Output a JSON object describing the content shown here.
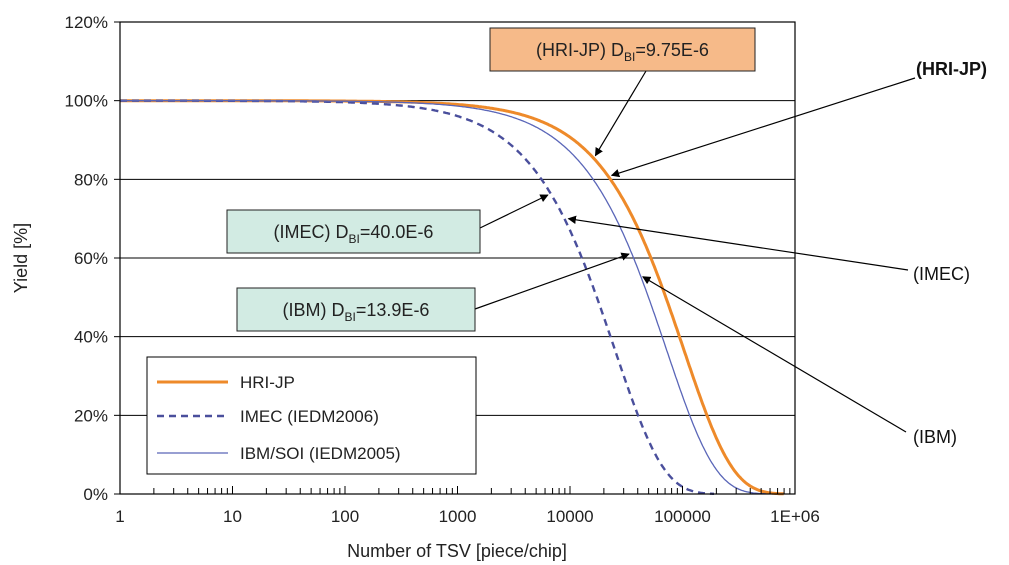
{
  "chart_data": {
    "type": "line",
    "xlabel": "Number of TSV [piece/chip]",
    "ylabel": "Yield [%]",
    "x_scale": "log",
    "xlim": [
      1,
      1000000
    ],
    "ylim": [
      0,
      120
    ],
    "x_ticks": [
      {
        "value": 1,
        "label": "1"
      },
      {
        "value": 10,
        "label": "10"
      },
      {
        "value": 100,
        "label": "100"
      },
      {
        "value": 1000,
        "label": "1000"
      },
      {
        "value": 10000,
        "label": "10000"
      },
      {
        "value": 100000,
        "label": "100000"
      },
      {
        "value": 1000000,
        "label": "1E+06"
      }
    ],
    "y_ticks": [
      {
        "value": 0,
        "label": "0%"
      },
      {
        "value": 20,
        "label": "20%"
      },
      {
        "value": 40,
        "label": "40%"
      },
      {
        "value": 60,
        "label": "60%"
      },
      {
        "value": 80,
        "label": "80%"
      },
      {
        "value": 100,
        "label": "100%"
      },
      {
        "value": 120,
        "label": "120%"
      }
    ],
    "gridlines_y": [
      20,
      40,
      60,
      80,
      100
    ],
    "legend_position": "bottom-left",
    "series": [
      {
        "name": "HRI-JP",
        "d": 9.75e-06,
        "color": "#ee8a2a",
        "style": "solid",
        "width": 3
      },
      {
        "name": "IMEC (IEDM2006)",
        "d": 4e-05,
        "color": "#4a4f9c",
        "style": "dashed",
        "width": 2.4
      },
      {
        "name": "IBM/SOI (IEDM2005)",
        "d": 1.39e-05,
        "color": "#5a66b8",
        "style": "solid",
        "width": 1.3
      }
    ],
    "callouts": [
      {
        "id": "hri",
        "prefix": "(HRI-JP) D",
        "sub": "BI",
        "suffix": "=9.75E-6",
        "fill": "#f6ba89"
      },
      {
        "id": "imec",
        "prefix": "(IMEC) D",
        "sub": "BI",
        "suffix": "=40.0E-6",
        "fill": "#d2ebe3"
      },
      {
        "id": "ibm",
        "prefix": "(IBM) D",
        "sub": "BI",
        "suffix": "=13.9E-6",
        "fill": "#d2ebe3"
      }
    ],
    "side_labels": [
      {
        "id": "hri",
        "text": "(HRI-JP)",
        "bold": true
      },
      {
        "id": "imec",
        "text": "(IMEC)",
        "bold": false
      },
      {
        "id": "ibm",
        "text": "(IBM)",
        "bold": false
      }
    ]
  }
}
